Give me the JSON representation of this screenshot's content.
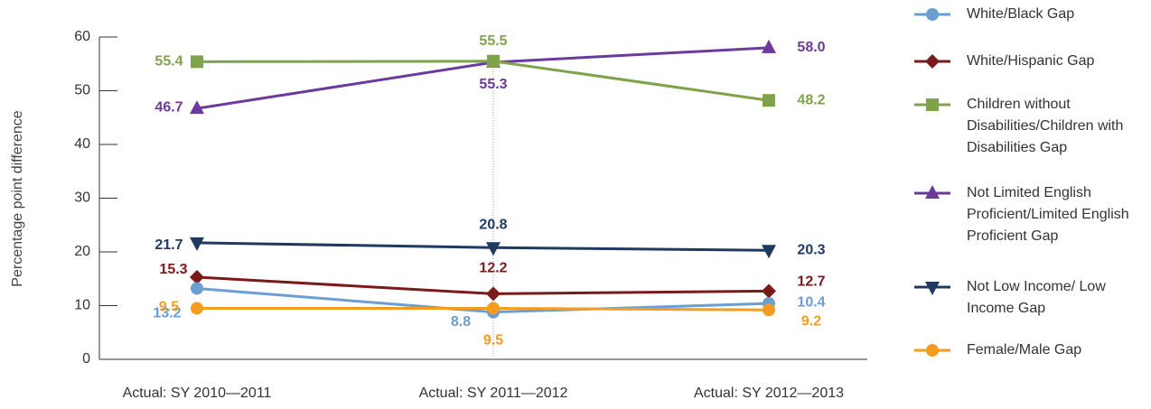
{
  "chart_data": {
    "type": "line",
    "y_label": "Percentage point difference",
    "categories": [
      "Actual: SY 2010—2011",
      "Actual: SY 2011—2012",
      "Actual: SY 2012—2013"
    ],
    "ylim": [
      0,
      60
    ],
    "yticks": [
      0,
      10,
      20,
      30,
      40,
      50,
      60
    ],
    "series": [
      {
        "name": "White/Black Gap",
        "color": "#6a9fd4",
        "marker": "circle",
        "values": [
          13.2,
          8.8,
          10.4
        ],
        "value_labels": [
          "13.2",
          "8.8",
          "10.4"
        ]
      },
      {
        "name": "White/Hispanic Gap",
        "color": "#7b1a1a",
        "marker": "diamond",
        "values": [
          15.3,
          12.2,
          12.7
        ],
        "value_labels": [
          "15.3",
          "12.2",
          "12.7"
        ]
      },
      {
        "name": "Children without Disabilities/Children with Disabilities Gap",
        "color": "#7ea34a",
        "marker": "square",
        "values": [
          55.4,
          55.5,
          48.2
        ],
        "value_labels": [
          "55.4",
          "55.5",
          "48.2"
        ]
      },
      {
        "name": "Not Limited English Proficient/Limited English Proficient Gap",
        "color": "#6b3a9c",
        "marker": "triangle-up",
        "values": [
          46.7,
          55.3,
          58.0
        ],
        "value_labels": [
          "46.7",
          "55.3",
          "58.0"
        ]
      },
      {
        "name": "Not Low Income/ Low Income Gap",
        "color": "#1f3a60",
        "marker": "triangle-down",
        "values": [
          21.7,
          20.8,
          20.3
        ],
        "value_labels": [
          "21.7",
          "20.8",
          "20.3"
        ]
      },
      {
        "name": "Female/Male Gap",
        "color": "#f39c1f",
        "marker": "circle",
        "values": [
          9.5,
          9.5,
          9.2
        ],
        "value_labels": [
          "9.5",
          "9.5",
          "9.2"
        ]
      }
    ]
  }
}
